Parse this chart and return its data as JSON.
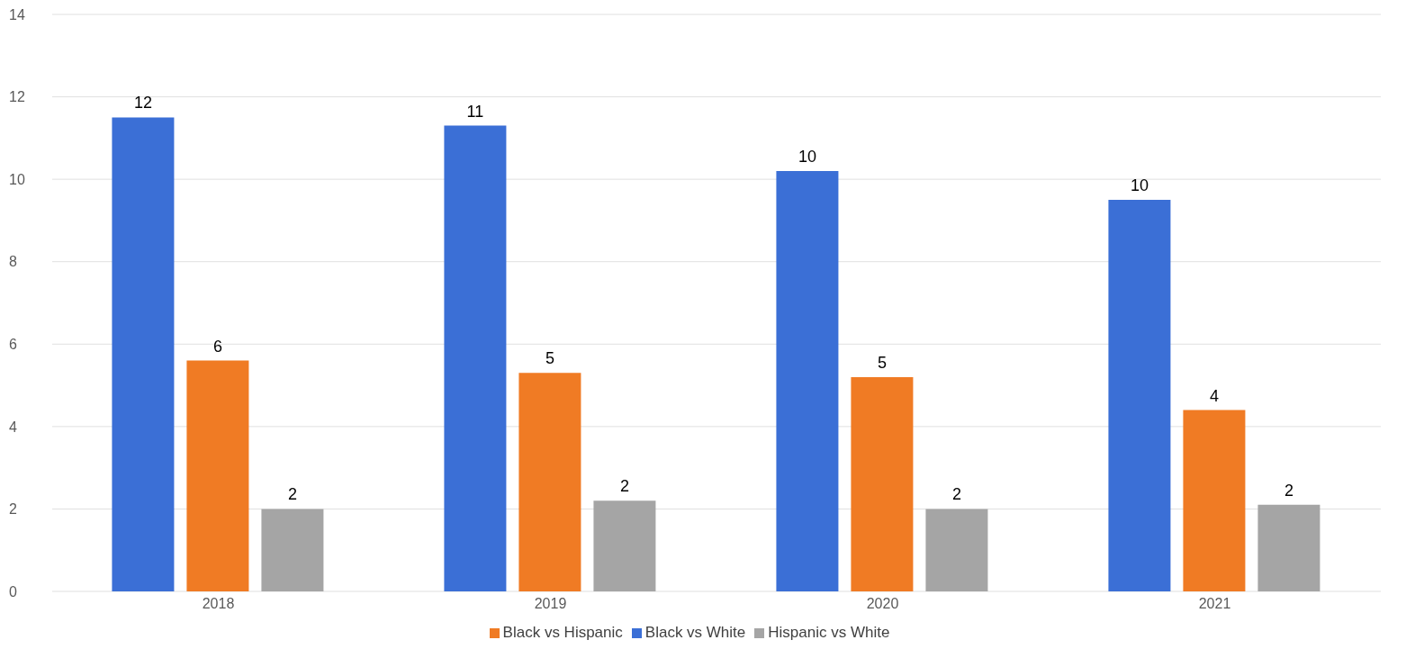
{
  "chart_data": {
    "type": "bar",
    "categories": [
      "2018",
      "2019",
      "2020",
      "2021"
    ],
    "series": [
      {
        "name": "Black vs White",
        "color": "#3b6fd6",
        "values": [
          11.5,
          11.3,
          10.2,
          9.5
        ],
        "value_labels": [
          "12",
          "11",
          "10",
          "10"
        ]
      },
      {
        "name": "Black vs Hispanic",
        "color": "#f07b24",
        "values": [
          5.6,
          5.3,
          5.2,
          4.4
        ],
        "value_labels": [
          "6",
          "5",
          "5",
          "4"
        ]
      },
      {
        "name": "Hispanic vs White",
        "color": "#a5a5a5",
        "values": [
          2.0,
          2.2,
          2.0,
          2.1
        ],
        "value_labels": [
          "2",
          "2",
          "2",
          "2"
        ]
      }
    ],
    "ylim": [
      0,
      14
    ],
    "yticks": [
      0,
      2,
      4,
      6,
      8,
      10,
      12,
      14
    ],
    "grid": "y",
    "legend": "bottom"
  }
}
